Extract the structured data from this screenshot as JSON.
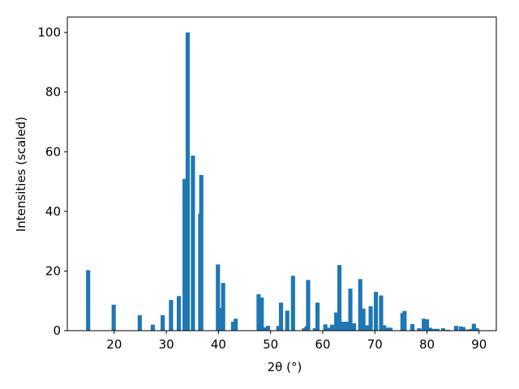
{
  "chart_data": {
    "type": "bar",
    "xlabel": "2θ (°)",
    "ylabel": "Intensities (scaled)",
    "color": "#1f77b4",
    "x": [
      15.0,
      19.9,
      24.9,
      27.4,
      29.3,
      30.9,
      32.4,
      33.5,
      34.1,
      35.1,
      36.5,
      36.7,
      39.9,
      40.3,
      40.9,
      42.8,
      43.3,
      47.7,
      48.3,
      49.0,
      49.5,
      51.5,
      52.0,
      53.2,
      54.3,
      56.4,
      56.9,
      57.2,
      58.5,
      59.0,
      60.5,
      61.0,
      61.8,
      62.6,
      63.2,
      63.8,
      64.6,
      65.3,
      66.0,
      67.2,
      67.8,
      68.5,
      69.2,
      70.2,
      71.2,
      71.8,
      72.4,
      73.0,
      75.3,
      75.7,
      77.2,
      78.5,
      79.4,
      80.0,
      80.6,
      81.4,
      82.0,
      83.1,
      84.0,
      85.6,
      86.5,
      87.0,
      87.9,
      88.6,
      89.0,
      89.6
    ],
    "values": [
      20.3,
      8.7,
      5.2,
      2.0,
      5.2,
      10.3,
      11.6,
      50.9,
      100,
      58.7,
      39.3,
      52.2,
      22.2,
      7.6,
      16.0,
      3.0,
      4.0,
      12.2,
      11.1,
      1.1,
      1.6,
      1.6,
      9.4,
      6.7,
      18.4,
      0.8,
      1.5,
      17.0,
      0.8,
      9.4,
      2.1,
      1.0,
      2.0,
      6.1,
      22.0,
      3.0,
      3.0,
      14.1,
      2.5,
      17.3,
      7.4,
      1.8,
      8.2,
      13.0,
      11.8,
      1.8,
      1.0,
      1.0,
      5.9,
      6.6,
      2.2,
      0.8,
      4.0,
      3.8,
      1.0,
      0.6,
      0.6,
      0.8,
      0.3,
      1.6,
      1.4,
      1.2,
      0.4,
      0.6,
      2.3,
      0.8
    ],
    "xlim": [
      11.0,
      93.3
    ],
    "ylim": [
      0,
      105.2
    ],
    "xticks": [
      20,
      30,
      40,
      50,
      60,
      70,
      80,
      90
    ],
    "yticks": [
      0,
      20,
      40,
      60,
      80,
      100
    ]
  }
}
